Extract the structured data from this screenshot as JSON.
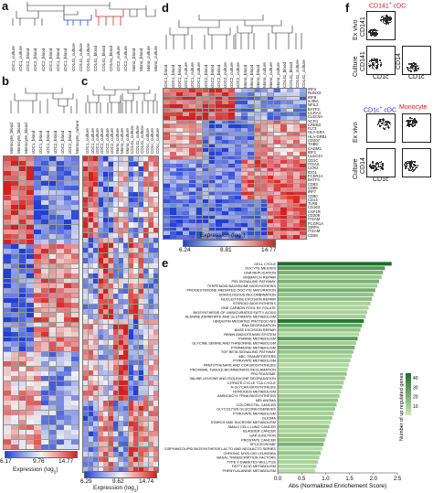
{
  "panels": {
    "a": "a",
    "b": "b",
    "c": "c",
    "d": "d",
    "e": "e",
    "f": "f"
  },
  "colorbars": {
    "b": {
      "title": "Expression (log",
      "sub": "2",
      "close": ")",
      "min": "6.17",
      "mid": "9.76",
      "max": "14.77"
    },
    "c": {
      "title": "Expression (log",
      "sub": "2",
      "close": ")",
      "min": "6.29",
      "mid": "9.62",
      "max": "14.74"
    },
    "d": {
      "title": "Expression (log",
      "sub": "2",
      "close": ")",
      "min": "6.24",
      "mid": "8.81",
      "max": "14.77"
    }
  },
  "panel_a_samples": [
    "cDC1_culture",
    "cDC1_culture",
    "cDC2_blood",
    "cDC2_blood",
    "cDC2_blood",
    "cDC1_blood",
    "cDC1_blood",
    "cDC1_blood",
    "CD141_culture",
    "CD141_culture",
    "CD141_culture",
    "CD141_blood",
    "CD141_blood",
    "CD141_blood",
    "cDC2_culture",
    "cDC2_culture",
    "Mono_blood",
    "Mono_blood",
    "Mono_culture",
    "Mono_culture"
  ],
  "panel_b_samples": [
    "Monocyte_blood",
    "Monocyte_blood",
    "Monocyte_blood",
    "cDC1_blood",
    "cDC1_blood",
    "cDC1_blood",
    "cDC2_blood",
    "cDC2_blood",
    "cDC2_blood",
    "Monocyte_culture"
  ],
  "panel_c_samples": [
    "cDC1_culture",
    "cDC1_culture",
    "cDC1_culture",
    "cDC2_culture",
    "cDC2_culture",
    "cDC2_culture",
    "Mono_culture",
    "Mono_culture",
    "Mono_culture",
    "CD141_culture",
    "CD141_culture",
    "CD141_culture",
    "CD1c_culture",
    "CD1c_culture",
    "CD1c_culture"
  ],
  "panel_d_samples": [
    "cDC1_blood",
    "cDC1_blood",
    "cDC1_blood",
    "cDC1_culture",
    "cDC1_culture",
    "cDC1_culture",
    "cDC2_blood",
    "cDC2_blood",
    "cDC2_blood",
    "cDC2_culture",
    "cDC2_culture",
    "cDC2_culture",
    "Mono_blood",
    "Mono_blood",
    "Mono_blood",
    "Mono_culture",
    "Mono_culture",
    "Mono_culture",
    "CD141_blood",
    "CD141_blood",
    "CD141_culture",
    "CD141_culture"
  ],
  "panel_d_genes": [
    "IRF4",
    "RUNX3",
    "IRF8",
    "IL3RA",
    "NFIL3",
    "BATF3",
    "LILRA4",
    "CLEC9A",
    "XCR1",
    "CREB3",
    "FLT3",
    "HLA-DRA",
    "HLA-DRB1",
    "CD207",
    "THBD",
    "CADM1",
    "IRF1",
    "CLEC4A",
    "CD1C",
    "ITGAX",
    "CCR2",
    "IDO1",
    "FCER1A",
    "BATF3",
    "CD83",
    "CD86",
    "IRF7",
    "CD80",
    "CD14",
    "TLR8",
    "CD163",
    "CSF1R",
    "CD209",
    "ITGAM",
    "FCGR1A",
    "SIRPA",
    "ITGAM",
    "CD68"
  ],
  "panel_e": {
    "xlabel": "Abs (Normalized Enrichement Score)",
    "ticks": [
      "0.0",
      "0.5",
      "1.0",
      "1.5",
      "2.0",
      "2.5"
    ],
    "legend_title": "Number of up regulated genes",
    "legend_ticks": [
      "40",
      "30",
      "20",
      "10"
    ],
    "pathways": [
      {
        "name": "CELL CYCLE",
        "value": 2.38,
        "genes": 45
      },
      {
        "name": "OOCYTE MEIOSIS",
        "value": 2.24,
        "genes": 30
      },
      {
        "name": "DNA REPLICATION",
        "value": 2.2,
        "genes": 20
      },
      {
        "name": "MISMATCH REPAIR",
        "value": 2.17,
        "genes": 12
      },
      {
        "name": "P53 SIGNALING PATHWAY",
        "value": 2.12,
        "genes": 20
      },
      {
        "name": "TERPENOID BACKBONE BIOSYNTHESIS",
        "value": 2.08,
        "genes": 10
      },
      {
        "name": "PROGESTERONE MEDIATED OOCYTE MATURATION",
        "value": 2.04,
        "genes": 22
      },
      {
        "name": "HOMOLOGOUS RECOMBINATION",
        "value": 2.0,
        "genes": 14
      },
      {
        "name": "NUCLEOTIDE EXCISION REPAIR",
        "value": 1.97,
        "genes": 15
      },
      {
        "name": "STEROID BIOSYNTHESIS",
        "value": 1.94,
        "genes": 9
      },
      {
        "name": "ONE CARBON POOL BY FOLATE",
        "value": 1.9,
        "genes": 8
      },
      {
        "name": "BIOSYNTHESIS OF UNSATURATED FATTY ACIDS",
        "value": 1.87,
        "genes": 9
      },
      {
        "name": "ALANINE ASPARTATE AND GLUTAMATE METABOLISM",
        "value": 1.84,
        "genes": 10
      },
      {
        "name": "UBIQUITIN MEDIATED PROTEOLYSIS",
        "value": 1.8,
        "genes": 42
      },
      {
        "name": "RNA DEGRADATION",
        "value": 1.76,
        "genes": 25
      },
      {
        "name": "BASE EXCISION REPAIR",
        "value": 1.73,
        "genes": 14
      },
      {
        "name": "RENIN ANGIOTENSIN SYSTEM",
        "value": 1.7,
        "genes": 6
      },
      {
        "name": "PURINE METABOLISM",
        "value": 1.67,
        "genes": 30
      },
      {
        "name": "GLYCINE SERINE AND THREONINE METABOLISM",
        "value": 1.64,
        "genes": 10
      },
      {
        "name": "PYRIMIDINE METABOLISM",
        "value": 1.61,
        "genes": 22
      },
      {
        "name": "TGF BETA SIGNALING PATHWAY",
        "value": 1.58,
        "genes": 14
      },
      {
        "name": "ABC TRANSPORTERS",
        "value": 1.55,
        "genes": 9
      },
      {
        "name": "PYRUVATE METABOLISM",
        "value": 1.52,
        "genes": 10
      },
      {
        "name": "PANTOTHENATE AND COA BIOSYNTHESIS",
        "value": 1.49,
        "genes": 6
      },
      {
        "name": "PROXIMAL TUBULE BICARBONATE RECLAMATION",
        "value": 1.46,
        "genes": 6
      },
      {
        "name": "PROTEASOME",
        "value": 1.44,
        "genes": 14
      },
      {
        "name": "VALINE LEUCINE AND ISOLEUCINE DEGRADATION",
        "value": 1.41,
        "genes": 12
      },
      {
        "name": "CITRATE CYCLE TCA CYCLE",
        "value": 1.38,
        "genes": 10
      },
      {
        "name": "N GLYCAN BIOSYNTHESIS",
        "value": 1.35,
        "genes": 12
      },
      {
        "name": "NITROGEN METABOLISM",
        "value": 1.32,
        "genes": 6
      },
      {
        "name": "AMINOACYL TRNA BIOSYNTHESIS",
        "value": 1.29,
        "genes": 12
      },
      {
        "name": "MELANOMA",
        "value": 1.26,
        "genes": 14
      },
      {
        "name": "COLORECTAL CANCER",
        "value": 1.23,
        "genes": 14
      },
      {
        "name": "GLYCOLYSIS GLUCONEOGENESIS",
        "value": 1.2,
        "genes": 12
      },
      {
        "name": "PYRUVATE METABOLISM",
        "value": 1.17,
        "genes": 9
      },
      {
        "name": "GLIOMA",
        "value": 1.14,
        "genes": 12
      },
      {
        "name": "STARCH AND SUCROSE METABOLISM",
        "value": 1.11,
        "genes": 6
      },
      {
        "name": "SMALL CELL LUNG CANCER",
        "value": 1.08,
        "genes": 14
      },
      {
        "name": "BLADDER CANCER",
        "value": 1.05,
        "genes": 8
      },
      {
        "name": "GAP JUNCTION",
        "value": 1.02,
        "genes": 12
      },
      {
        "name": "PROSTATE CANCER",
        "value": 0.99,
        "genes": 14
      },
      {
        "name": "SPLICEOSOME",
        "value": 0.96,
        "genes": 20
      },
      {
        "name": "GLYCOSPHINGOLIPID BIOSYNTHESIS LACTO AND NEOLACTO SERIES",
        "value": 0.93,
        "genes": 6
      },
      {
        "name": "CHRONIC MYELOID LEUKEMIA",
        "value": 0.9,
        "genes": 14
      },
      {
        "name": "BASAL TRANSCRIPTION FACTORS",
        "value": 0.87,
        "genes": 9
      },
      {
        "name": "TYPE II DIABETES MELLITUS",
        "value": 0.84,
        "genes": 8
      },
      {
        "name": "FATTY ACID METABOLISM",
        "value": 0.81,
        "genes": 8
      },
      {
        "name": "PHENYLALANINE METABOLISM",
        "value": 0.78,
        "genes": 5
      }
    ]
  },
  "panel_f": {
    "top_title": "CD141",
    "top_title_sup": "+",
    "top_title_tail": " cDC",
    "bottom_left_title": "CD1c",
    "bottom_left_sup": "+",
    "bottom_left_tail": " cDC",
    "bottom_right_title": "Monocyte",
    "row_ex_vivo": "Ex vivo",
    "row_culture": "Culture",
    "y_cd141": "CD141",
    "y_cd14": "CD14",
    "x_cd1c": "CD1c",
    "colors": {
      "red": "#d11a1a",
      "blue": "#1a2bd1"
    }
  }
}
